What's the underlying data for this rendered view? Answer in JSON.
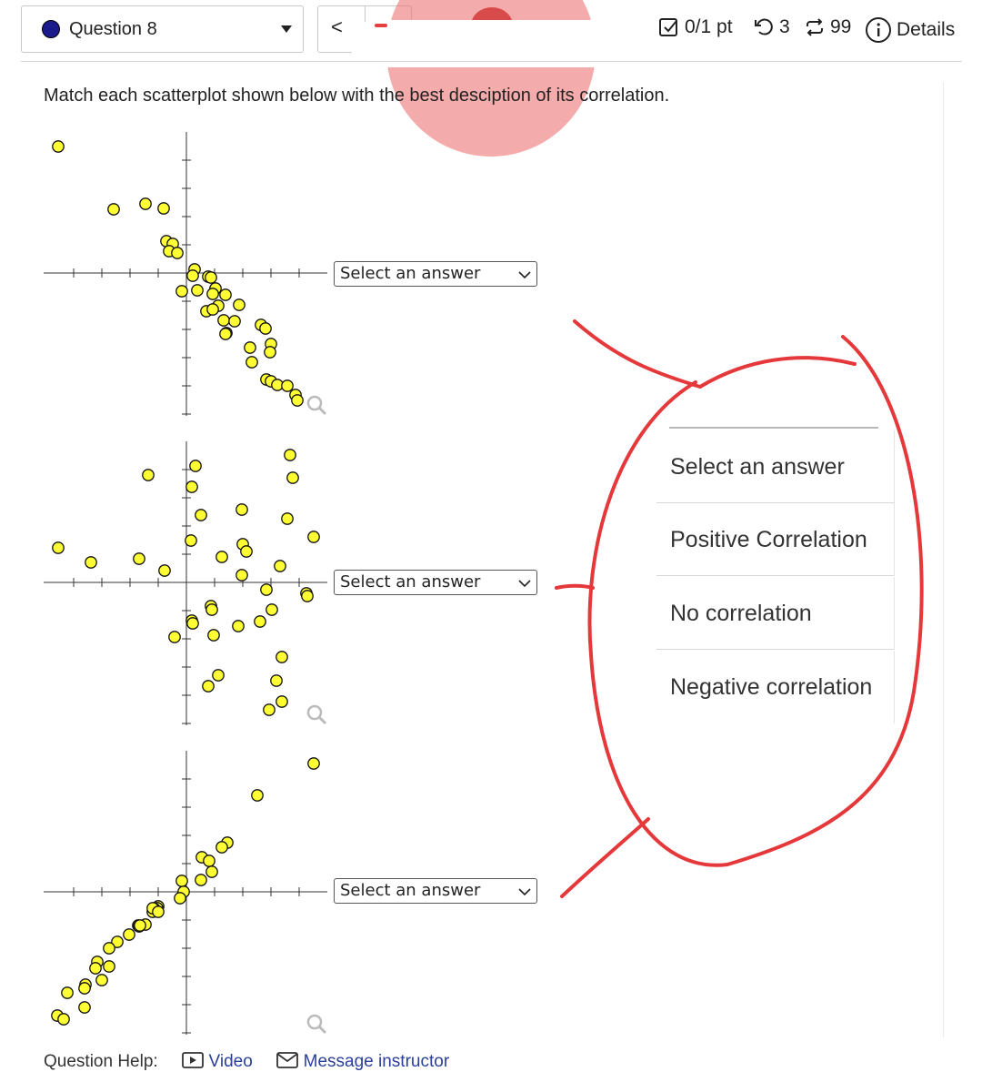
{
  "header": {
    "question_label": "Question 8",
    "prev_label": "<",
    "score": "0/1 pt",
    "retries": "3",
    "attempts": "99",
    "details": "Details"
  },
  "prompt": "Match each scatterplot shown below with the best desciption of its correlation.",
  "plots": [
    {
      "select_label": "Select an answer",
      "chart_data": {
        "type": "scatter",
        "trend": "negative"
      }
    },
    {
      "select_label": "Select an answer",
      "chart_data": {
        "type": "scatter",
        "trend": "none"
      }
    },
    {
      "select_label": "Select an answer",
      "chart_data": {
        "type": "scatter",
        "trend": "positive"
      }
    }
  ],
  "dropdown": {
    "options": [
      "Select an answer",
      "Positive Correlation",
      "No correlation",
      "Negative correlation"
    ]
  },
  "help": {
    "label": "Question Help:",
    "video": "Video",
    "message": "Message instructor"
  },
  "colors": {
    "point_fill": "#ffff33",
    "annotation_red": "#e5383b",
    "link": "#2a3f9a"
  }
}
